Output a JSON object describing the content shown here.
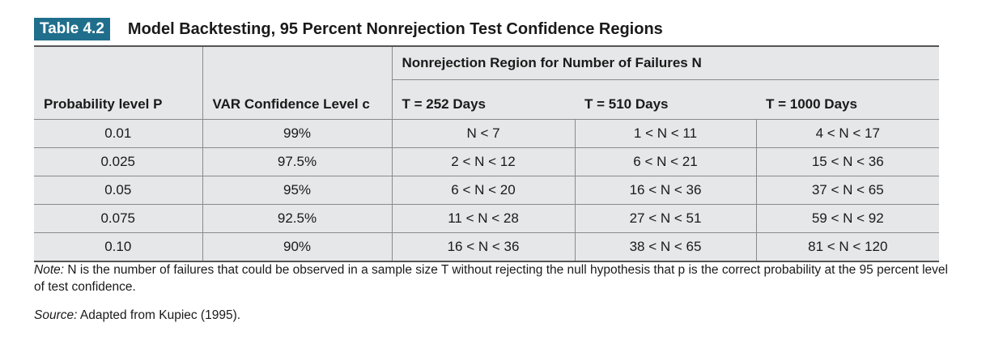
{
  "caption": {
    "label": "Table 4.2",
    "title": "Model Backtesting, 95 Percent Nonrejection Test Confidence Regions"
  },
  "table": {
    "group_header": "Nonrejection Region for Number of Failures N",
    "col_headers": [
      "Probability level P",
      "VAR Confidence Level c",
      "T = 252 Days",
      "T = 510 Days",
      "T = 1000 Days"
    ],
    "rows": [
      [
        "0.01",
        "99%",
        "N < 7",
        "1 < N < 11",
        "4 < N < 17"
      ],
      [
        "0.025",
        "97.5%",
        "2 < N < 12",
        "6 < N < 21",
        "15 < N < 36"
      ],
      [
        "0.05",
        "95%",
        "6 < N < 20",
        "16 < N < 36",
        "37 < N < 65"
      ],
      [
        "0.075",
        "92.5%",
        "11 < N < 28",
        "27 < N < 51",
        "59 < N < 92"
      ],
      [
        "0.10",
        "90%",
        "16 < N < 36",
        "38 < N < 65",
        "81 < N < 120"
      ]
    ]
  },
  "note": {
    "label": "Note:",
    "text": "N is the number of failures that could be observed in a sample size T without rejecting the null hypothesis that p is the correct probability at the 95 percent level of test confidence."
  },
  "source": {
    "label": "Source:",
    "text": "Adapted from Kupiec (1995)."
  },
  "colors": {
    "label_bg": "#1f6e8c",
    "table_bg": "#e6e7e8"
  }
}
